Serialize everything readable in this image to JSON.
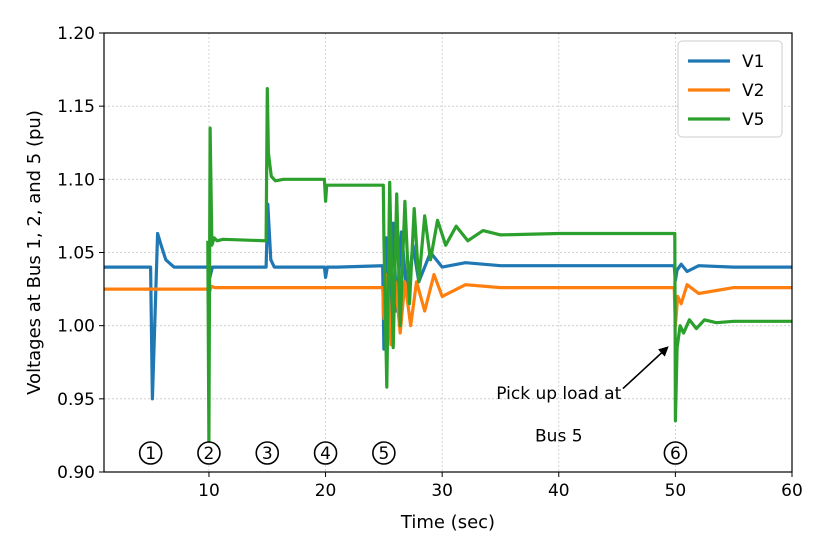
{
  "chart_data": {
    "type": "line",
    "title": "",
    "xlabel": "Time (sec)",
    "ylabel": "Voltages at Bus 1, 2, and 5 (pu)",
    "xlim": [
      1,
      60
    ],
    "ylim": [
      0.9,
      1.2
    ],
    "xticks": [
      10,
      20,
      30,
      40,
      50,
      60
    ],
    "yticks": [
      0.9,
      0.95,
      1.0,
      1.05,
      1.1,
      1.15,
      1.2
    ],
    "ytick_labels": [
      "0.90",
      "0.95",
      "1.00",
      "1.05",
      "1.10",
      "1.15",
      "1.20"
    ],
    "grid": true,
    "legend_position": "top-right",
    "series": [
      {
        "name": "V1",
        "color": "#1f77b4",
        "x": [
          1,
          5,
          5.15,
          5.35,
          5.6,
          5.9,
          6.3,
          7.0,
          8,
          9.95,
          10.05,
          10.3,
          10.8,
          12,
          14.9,
          15.05,
          15.3,
          15.6,
          16.5,
          19.9,
          20.0,
          20.15,
          21,
          24.9,
          25.0,
          25.2,
          25.5,
          25.8,
          26.1,
          26.5,
          27,
          27.5,
          28,
          29,
          30,
          32,
          35,
          40,
          45,
          49.9,
          50.0,
          50.15,
          50.5,
          51,
          52,
          55,
          60
        ],
        "y": [
          1.04,
          1.04,
          0.95,
          1.0,
          1.063,
          1.055,
          1.045,
          1.04,
          1.04,
          1.04,
          1.032,
          1.04,
          1.04,
          1.04,
          1.04,
          1.083,
          1.045,
          1.04,
          1.04,
          1.04,
          1.033,
          1.04,
          1.04,
          1.041,
          0.984,
          1.06,
          1.0,
          1.07,
          1.01,
          1.064,
          1.02,
          1.055,
          1.03,
          1.05,
          1.04,
          1.043,
          1.041,
          1.041,
          1.041,
          1.041,
          1.031,
          1.038,
          1.042,
          1.037,
          1.041,
          1.04,
          1.04
        ]
      },
      {
        "name": "V2",
        "color": "#ff7f0e",
        "x": [
          1,
          9.95,
          10.05,
          10.2,
          10.5,
          20,
          24.9,
          25.0,
          25.3,
          25.6,
          26,
          26.4,
          26.8,
          27.3,
          27.8,
          28.5,
          29.3,
          30,
          32,
          35,
          40,
          45,
          49.9,
          50.0,
          50.2,
          50.5,
          51,
          52,
          55,
          60
        ],
        "y": [
          1.025,
          1.025,
          1.023,
          1.027,
          1.026,
          1.026,
          1.026,
          1.005,
          1.035,
          0.987,
          1.03,
          0.995,
          1.03,
          1.0,
          1.03,
          1.01,
          1.035,
          1.02,
          1.028,
          1.026,
          1.026,
          1.026,
          1.026,
          1.0,
          1.02,
          1.015,
          1.028,
          1.022,
          1.026,
          1.026
        ]
      },
      {
        "name": "V5",
        "color": "#2ca02c",
        "x": [
          9.9,
          10.0,
          10.1,
          10.25,
          10.45,
          10.7,
          11.2,
          14.9,
          15.0,
          15.1,
          15.35,
          15.7,
          16.4,
          19.9,
          20.0,
          20.1,
          20.25,
          24.95,
          25.0,
          25.25,
          25.5,
          25.8,
          26.1,
          26.4,
          26.8,
          27.2,
          27.6,
          28.0,
          28.5,
          29.0,
          29.6,
          30.3,
          31.2,
          32.2,
          33.5,
          35,
          40,
          45,
          49.95,
          50.0,
          50.15,
          50.4,
          50.7,
          51.2,
          51.8,
          52.5,
          53.5,
          55,
          60
        ],
        "y": [
          1.058,
          0.92,
          1.135,
          1.055,
          1.06,
          1.058,
          1.059,
          1.058,
          1.162,
          1.118,
          1.102,
          1.099,
          1.1,
          1.1,
          1.085,
          1.096,
          1.096,
          1.096,
          1.06,
          0.958,
          1.098,
          0.985,
          1.09,
          1.0,
          1.085,
          1.015,
          1.08,
          1.03,
          1.075,
          1.045,
          1.072,
          1.055,
          1.068,
          1.058,
          1.065,
          1.062,
          1.063,
          1.063,
          1.063,
          0.935,
          0.985,
          1.0,
          0.995,
          1.004,
          0.998,
          1.004,
          1.002,
          1.003,
          1.003
        ]
      }
    ],
    "annotations": [
      {
        "text": "Pick up load at",
        "x": 40,
        "y": 0.954
      },
      {
        "text": "Bus 5",
        "x": 40,
        "y": 0.925
      }
    ],
    "arrow": {
      "from": [
        45.5,
        0.957
      ],
      "to": [
        49.3,
        0.985
      ]
    },
    "event_markers": [
      {
        "label": "1",
        "x": 5
      },
      {
        "label": "2",
        "x": 10
      },
      {
        "label": "3",
        "x": 15
      },
      {
        "label": "4",
        "x": 20
      },
      {
        "label": "5",
        "x": 25
      },
      {
        "label": "6",
        "x": 50
      }
    ]
  }
}
